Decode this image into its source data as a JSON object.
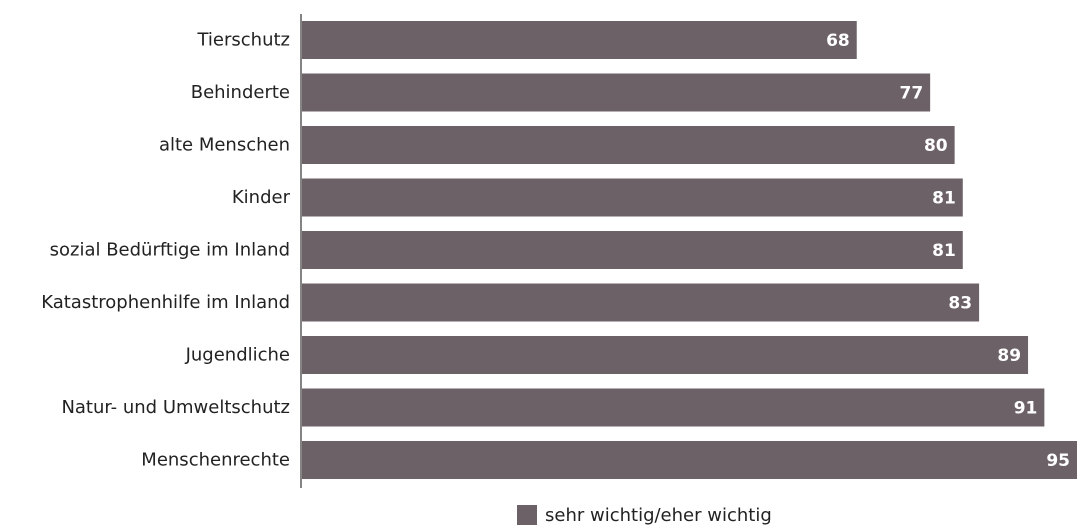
{
  "chart_data": {
    "type": "bar",
    "orientation": "horizontal",
    "categories": [
      "Tierschutz",
      "Behinderte",
      "alte Menschen",
      "Kinder",
      "sozial Bedürftige im Inland",
      "Katastrophenhilfe im Inland",
      "Jugendliche",
      "Natur- und Umweltschutz",
      "Menschenrechte"
    ],
    "series": [
      {
        "name": "sehr wichtig/eher wichtig",
        "color": "#6d6168",
        "values": [
          68,
          77,
          80,
          81,
          81,
          83,
          89,
          91,
          95
        ]
      }
    ],
    "xlim": [
      0,
      95
    ],
    "grid": false,
    "legend": "bottom-center",
    "data_labels": true
  }
}
